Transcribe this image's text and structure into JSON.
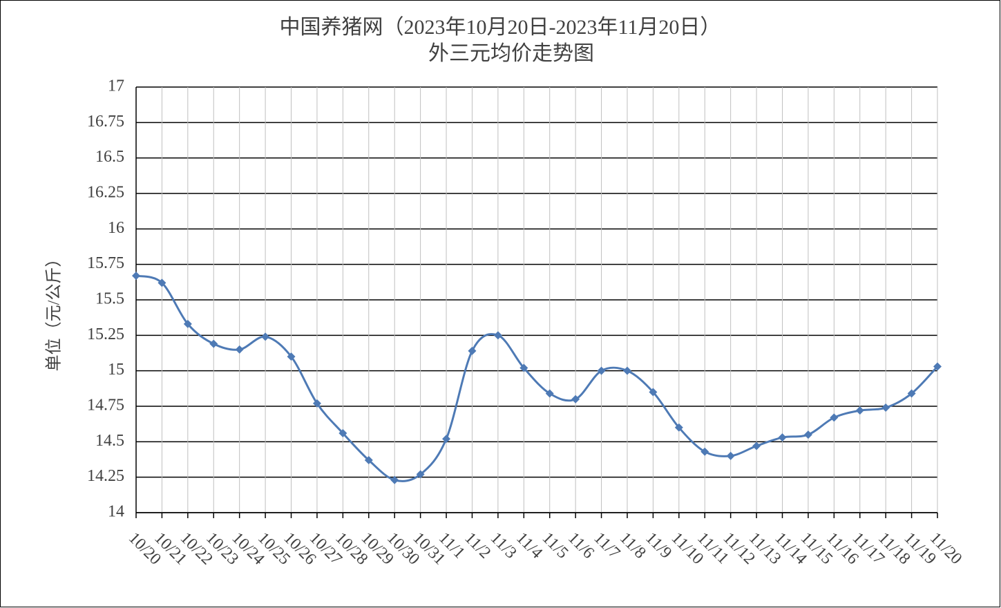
{
  "chart_data": {
    "type": "line",
    "title": "中国养猪网（2023年10月20日-2023年11月20日）",
    "subtitle": "外三元均价走势图",
    "y_label": "单位（元/公斤）",
    "categories": [
      "10/20",
      "10/21",
      "10/22",
      "10/23",
      "10/24",
      "10/25",
      "10/26",
      "10/27",
      "10/28",
      "10/29",
      "10/30",
      "10/31",
      "11/1",
      "11/2",
      "11/3",
      "11/4",
      "11/5",
      "11/6",
      "11/7",
      "11/8",
      "11/9",
      "11/10",
      "11/11",
      "11/12",
      "11/13",
      "11/14",
      "11/15",
      "11/16",
      "11/17",
      "11/18",
      "11/19",
      "11/20"
    ],
    "series": [
      {
        "color": "#4e7ab5",
        "values": [
          15.67,
          15.62,
          15.33,
          15.19,
          15.15,
          15.24,
          15.1,
          14.77,
          14.56,
          14.37,
          14.23,
          14.27,
          14.52,
          15.14,
          15.25,
          15.02,
          14.84,
          14.8,
          15.0,
          15.0,
          14.85,
          14.6,
          14.43,
          14.4,
          14.47,
          14.53,
          14.55,
          14.67,
          14.72,
          14.74,
          14.84,
          15.03
        ]
      }
    ],
    "ylim": [
      14,
      17
    ],
    "yticks": [
      14,
      14.25,
      14.5,
      14.75,
      15,
      15.25,
      15.5,
      15.75,
      16,
      16.25,
      16.5,
      16.75,
      17
    ],
    "grid": true,
    "smooth": true
  }
}
